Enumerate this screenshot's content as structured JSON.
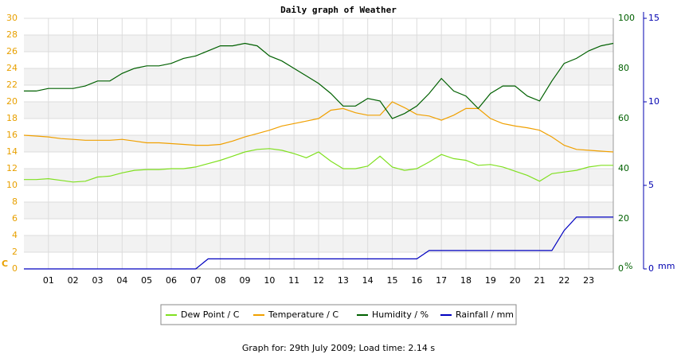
{
  "chart_data": {
    "type": "line",
    "title": "Daily graph of Weather",
    "footer": "Graph for: 29th July 2009; Load time: 2.14 s",
    "x": [
      0,
      0.5,
      1,
      1.5,
      2,
      2.5,
      3,
      3.5,
      4,
      4.5,
      5,
      5.5,
      6,
      6.5,
      7,
      7.5,
      8,
      8.5,
      9,
      9.5,
      10,
      10.5,
      11,
      11.5,
      12,
      12.5,
      13,
      13.5,
      14,
      14.5,
      15,
      15.5,
      16,
      16.5,
      17,
      17.5,
      18,
      18.5,
      19,
      19.5,
      20,
      20.5,
      21,
      21.5,
      22,
      22.5,
      23,
      23.5,
      24
    ],
    "xlim": [
      0,
      24
    ],
    "xticks": [
      {
        "value": 1,
        "label": "01"
      },
      {
        "value": 2,
        "label": "02"
      },
      {
        "value": 3,
        "label": "03"
      },
      {
        "value": 4,
        "label": "04"
      },
      {
        "value": 5,
        "label": "05"
      },
      {
        "value": 6,
        "label": "06"
      },
      {
        "value": 7,
        "label": "07"
      },
      {
        "value": 8,
        "label": "08"
      },
      {
        "value": 9,
        "label": "09"
      },
      10,
      11,
      12,
      13,
      14,
      15,
      16,
      17,
      18,
      19,
      20,
      21,
      22,
      23
    ],
    "ylim": [
      0,
      30
    ],
    "yticks": [
      0,
      2,
      4,
      6,
      8,
      10,
      12,
      14,
      16,
      18,
      20,
      22,
      24,
      26,
      28,
      30
    ],
    "y_label": "C",
    "y_color": "#e8a000",
    "y2lim": [
      0,
      100
    ],
    "y2ticks": [
      0,
      20,
      40,
      60,
      80,
      100
    ],
    "y2_label": "%",
    "y2_color": "#006000",
    "y3lim": [
      0,
      15
    ],
    "y3ticks": [
      0,
      5,
      10,
      15
    ],
    "y3_label": "mm",
    "y3_color": "#0000b0",
    "grid": true,
    "series": [
      {
        "name": "Dew Point / C",
        "color": "#80e020",
        "axis": "y",
        "values": [
          10.7,
          10.7,
          10.8,
          10.6,
          10.4,
          10.5,
          11,
          11.1,
          11.5,
          11.8,
          11.9,
          11.9,
          12,
          12,
          12.2,
          12.6,
          13,
          13.5,
          14,
          14.3,
          14.4,
          14.2,
          13.8,
          13.3,
          14,
          12.9,
          12,
          12,
          12.3,
          13.5,
          12.2,
          11.8,
          12,
          12.8,
          13.7,
          13.2,
          13,
          12.4,
          12.5,
          12.2,
          11.7,
          11.2,
          10.5,
          11.4,
          11.6,
          11.8,
          12.2,
          12.4,
          12.4
        ]
      },
      {
        "name": "Temperature / C",
        "color": "#f0a000",
        "axis": "y",
        "values": [
          16,
          15.9,
          15.8,
          15.6,
          15.5,
          15.4,
          15.4,
          15.4,
          15.5,
          15.3,
          15.1,
          15.1,
          15,
          14.9,
          14.8,
          14.8,
          14.9,
          15.3,
          15.8,
          16.2,
          16.6,
          17.1,
          17.4,
          17.7,
          18,
          19,
          19.2,
          18.7,
          18.4,
          18.4,
          20,
          19.3,
          18.5,
          18.3,
          17.8,
          18.4,
          19.2,
          19.2,
          18,
          17.4,
          17.1,
          16.9,
          16.6,
          15.8,
          14.8,
          14.3,
          14.2,
          14.1,
          14
        ]
      },
      {
        "name": "Humidity / %",
        "color": "#006000",
        "axis": "y2",
        "values": [
          71,
          71,
          72,
          72,
          72,
          73,
          75,
          75,
          78,
          80,
          81,
          81,
          82,
          84,
          85,
          87,
          89,
          89,
          90,
          89,
          85,
          83,
          80,
          77,
          74,
          70,
          65,
          65,
          68,
          67,
          60,
          62,
          65,
          70,
          76,
          71,
          69,
          64,
          70,
          73,
          73,
          69,
          67,
          75,
          82,
          84,
          87,
          89,
          90
        ]
      },
      {
        "name": "Rainfall / mm",
        "color": "#0000c0",
        "axis": "y3",
        "values": [
          0,
          0,
          0,
          0,
          0,
          0,
          0,
          0,
          0,
          0,
          0,
          0,
          0,
          0,
          0,
          0.6,
          0.6,
          0.6,
          0.6,
          0.6,
          0.6,
          0.6,
          0.6,
          0.6,
          0.6,
          0.6,
          0.6,
          0.6,
          0.6,
          0.6,
          0.6,
          0.6,
          0.6,
          1.1,
          1.1,
          1.1,
          1.1,
          1.1,
          1.1,
          1.1,
          1.1,
          1.1,
          1.1,
          1.1,
          2.3,
          3.1,
          3.1,
          3.1,
          3.1
        ]
      }
    ]
  }
}
